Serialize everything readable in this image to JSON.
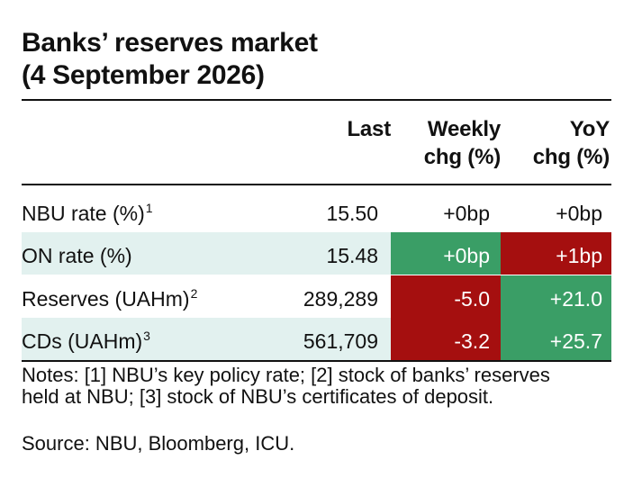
{
  "title": {
    "line1": "Banks’ reserves market",
    "line2": "(4 September 2026)"
  },
  "columns": {
    "last": "Last",
    "weekly_line1": "Weekly",
    "weekly_line2": "chg (%)",
    "yoy_line1": "YoY",
    "yoy_line2": "chg (%)"
  },
  "rows": [
    {
      "label": "NBU rate (%)",
      "footnote": "1",
      "last": "15.50",
      "weekly": "+0bp",
      "yoy": "+0bp"
    },
    {
      "label": "ON rate (%)",
      "footnote": "",
      "last": "15.48",
      "weekly": "+0bp",
      "yoy": "+1bp"
    },
    {
      "label": "Reserves (UAHm)",
      "footnote": "2",
      "last": "289,289",
      "weekly": "-5.0",
      "yoy": "+21.0"
    },
    {
      "label": "CDs (UAHm)",
      "footnote": "3",
      "last": "561,709",
      "weekly": "-3.2",
      "yoy": "+25.7"
    }
  ],
  "notes": {
    "line1": "Notes: [1] NBU’s key policy rate; [2] stock of banks’ reserves",
    "line2": "held at NBU; [3] stock of NBU’s certificates of deposit."
  },
  "source": "Source: NBU, Bloomberg, ICU.",
  "colors": {
    "positive": "#3a9e66",
    "negative": "#a50f0f",
    "row_shade": "#e2f1ef"
  }
}
